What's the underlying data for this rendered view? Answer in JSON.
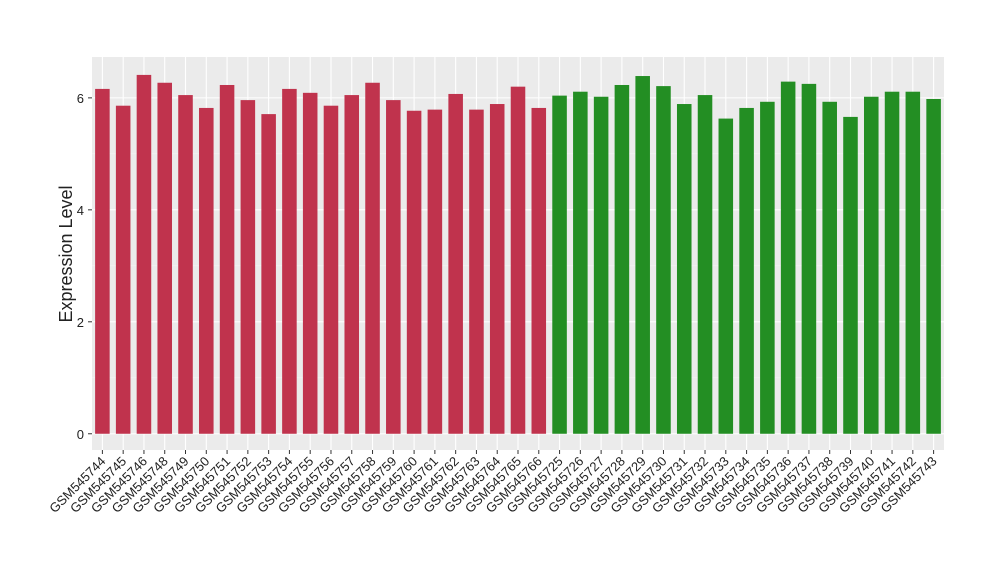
{
  "chart_data": {
    "type": "bar",
    "y_label": "Expression Level",
    "categories": [
      "GSM545744",
      "GSM545745",
      "GSM545746",
      "GSM545748",
      "GSM545749",
      "GSM545750",
      "GSM545751",
      "GSM545752",
      "GSM545753",
      "GSM545754",
      "GSM545755",
      "GSM545756",
      "GSM545757",
      "GSM545758",
      "GSM545759",
      "GSM545760",
      "GSM545761",
      "GSM545762",
      "GSM545763",
      "GSM545764",
      "GSM545765",
      "GSM545766",
      "GSM545725",
      "GSM545726",
      "GSM545727",
      "GSM545728",
      "GSM545729",
      "GSM545730",
      "GSM545731",
      "GSM545732",
      "GSM545733",
      "GSM545734",
      "GSM545735",
      "GSM545736",
      "GSM545737",
      "GSM545738",
      "GSM545739",
      "GSM545740",
      "GSM545741",
      "GSM545742",
      "GSM545743"
    ],
    "values": [
      6.16,
      5.86,
      6.41,
      6.27,
      6.05,
      5.82,
      6.23,
      5.96,
      5.71,
      6.16,
      6.09,
      5.86,
      6.05,
      6.27,
      5.96,
      5.77,
      5.79,
      6.07,
      5.79,
      5.89,
      6.2,
      5.82,
      6.04,
      6.11,
      6.02,
      6.23,
      6.39,
      6.21,
      5.89,
      6.05,
      5.63,
      5.82,
      5.93,
      6.29,
      6.25,
      5.93,
      5.66,
      6.02,
      6.11,
      6.11,
      5.98
    ],
    "colors": [
      "#c0334d",
      "#c0334d",
      "#c0334d",
      "#c0334d",
      "#c0334d",
      "#c0334d",
      "#c0334d",
      "#c0334d",
      "#c0334d",
      "#c0334d",
      "#c0334d",
      "#c0334d",
      "#c0334d",
      "#c0334d",
      "#c0334d",
      "#c0334d",
      "#c0334d",
      "#c0334d",
      "#c0334d",
      "#c0334d",
      "#c0334d",
      "#c0334d",
      "#238e23",
      "#238e23",
      "#238e23",
      "#238e23",
      "#238e23",
      "#238e23",
      "#238e23",
      "#238e23",
      "#238e23",
      "#238e23",
      "#238e23",
      "#238e23",
      "#238e23",
      "#238e23",
      "#238e23",
      "#238e23",
      "#238e23",
      "#238e23",
      "#238e23"
    ],
    "ylim": [
      -0.29,
      6.73
    ],
    "yticks": [
      0,
      2,
      4,
      6
    ],
    "grid": true
  }
}
